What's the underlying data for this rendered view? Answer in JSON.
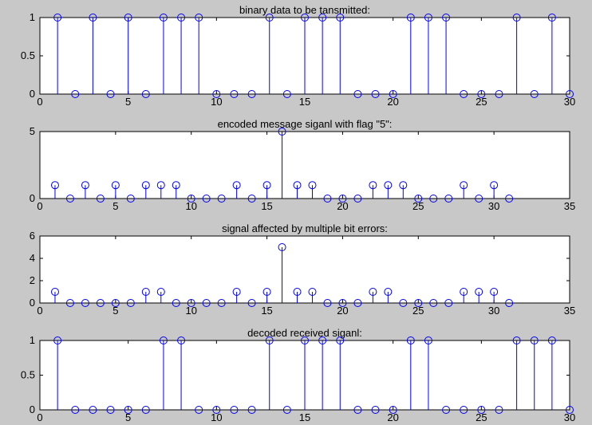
{
  "chart_data": [
    {
      "type": "stem",
      "title": "binary data to be tansmitted:",
      "xlim": [
        0,
        30
      ],
      "ylim": [
        0,
        1
      ],
      "xticks": [
        0,
        5,
        10,
        15,
        20,
        25,
        30
      ],
      "yticks": [
        0,
        0.5,
        1
      ],
      "x": [
        1,
        2,
        3,
        4,
        5,
        6,
        7,
        8,
        9,
        10,
        11,
        12,
        13,
        14,
        15,
        16,
        17,
        18,
        19,
        20,
        21,
        22,
        23,
        24,
        25,
        26,
        27,
        28,
        29,
        30
      ],
      "values": [
        1,
        0,
        1,
        0,
        1,
        0,
        1,
        1,
        1,
        0,
        0,
        0,
        1,
        0,
        1,
        1,
        1,
        0,
        0,
        0,
        1,
        1,
        1,
        0,
        0,
        0,
        1,
        0,
        1,
        0
      ]
    },
    {
      "type": "stem",
      "title": "encoded message siganl with flag \"5\":",
      "xlim": [
        0,
        35
      ],
      "ylim": [
        0,
        5
      ],
      "xticks": [
        0,
        5,
        10,
        15,
        20,
        25,
        30,
        35
      ],
      "yticks": [
        0,
        5
      ],
      "x": [
        1,
        2,
        3,
        4,
        5,
        6,
        7,
        8,
        9,
        10,
        11,
        12,
        13,
        14,
        15,
        16,
        17,
        18,
        19,
        20,
        21,
        22,
        23,
        24,
        25,
        26,
        27,
        28,
        29,
        30,
        31
      ],
      "values": [
        1,
        0,
        1,
        0,
        1,
        0,
        1,
        1,
        1,
        0,
        0,
        0,
        1,
        0,
        1,
        5,
        1,
        1,
        0,
        0,
        0,
        1,
        1,
        1,
        0,
        0,
        0,
        1,
        0,
        1,
        0
      ]
    },
    {
      "type": "stem",
      "title": "signal affected by multiple bit errors:",
      "xlim": [
        0,
        35
      ],
      "ylim": [
        0,
        6
      ],
      "xticks": [
        0,
        5,
        10,
        15,
        20,
        25,
        30,
        35
      ],
      "yticks": [
        0,
        2,
        4,
        6
      ],
      "x": [
        1,
        2,
        3,
        4,
        5,
        6,
        7,
        8,
        9,
        10,
        11,
        12,
        13,
        14,
        15,
        16,
        17,
        18,
        19,
        20,
        21,
        22,
        23,
        24,
        25,
        26,
        27,
        28,
        29,
        30,
        31
      ],
      "values": [
        1,
        0,
        0,
        0,
        0,
        0,
        1,
        1,
        0,
        0,
        0,
        0,
        1,
        0,
        1,
        5,
        1,
        1,
        0,
        0,
        0,
        1,
        1,
        0,
        0,
        0,
        0,
        1,
        1,
        1,
        0
      ]
    },
    {
      "type": "stem",
      "title": "decoded received siganl:",
      "xlim": [
        0,
        30
      ],
      "ylim": [
        0,
        1
      ],
      "xticks": [
        0,
        5,
        10,
        15,
        20,
        25,
        30
      ],
      "yticks": [
        0,
        0.5,
        1
      ],
      "x": [
        1,
        2,
        3,
        4,
        5,
        6,
        7,
        8,
        9,
        10,
        11,
        12,
        13,
        14,
        15,
        16,
        17,
        18,
        19,
        20,
        21,
        22,
        23,
        24,
        25,
        26,
        27,
        28,
        29,
        30
      ],
      "values": [
        1,
        0,
        0,
        0,
        0,
        0,
        1,
        1,
        0,
        0,
        0,
        0,
        1,
        0,
        1,
        1,
        1,
        0,
        0,
        0,
        1,
        1,
        0,
        0,
        0,
        0,
        1,
        1,
        1,
        0
      ]
    }
  ],
  "colors": {
    "figure_background": "#c8c8c8",
    "axes_background": "#ffffff",
    "stem": "#0000ff",
    "axis": "#000000"
  }
}
